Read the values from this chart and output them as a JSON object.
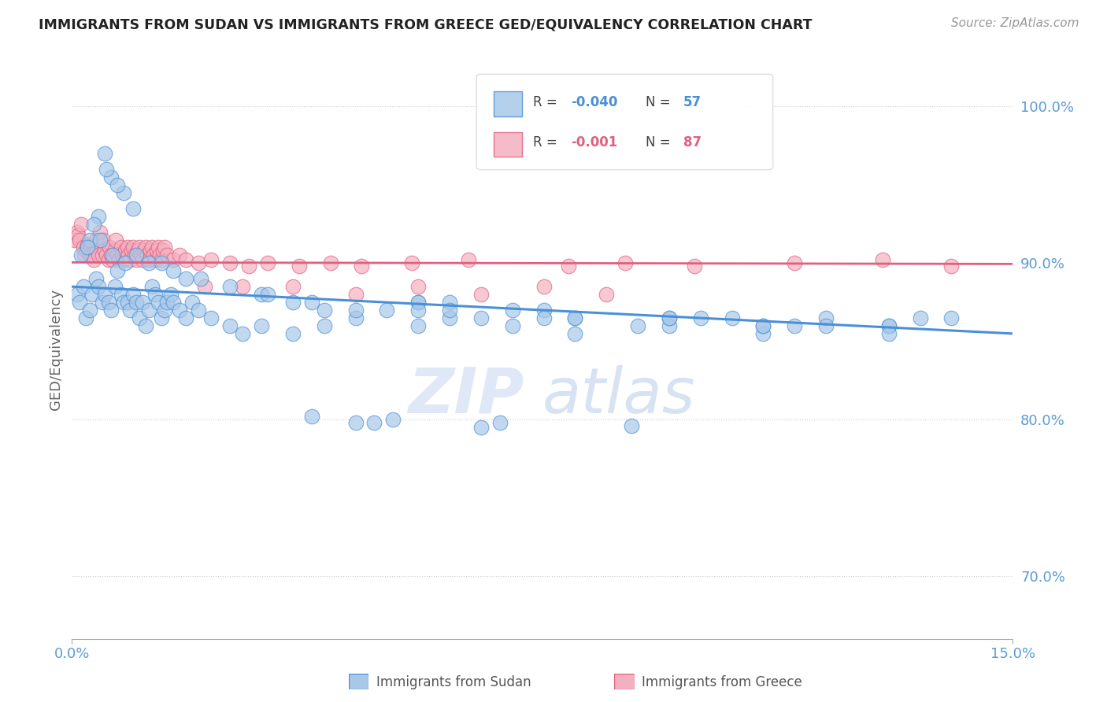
{
  "title": "IMMIGRANTS FROM SUDAN VS IMMIGRANTS FROM GREECE GED/EQUIVALENCY CORRELATION CHART",
  "source": "Source: ZipAtlas.com",
  "ylabel": "GED/Equivalency",
  "yticks": [
    70.0,
    80.0,
    90.0,
    100.0
  ],
  "xlim": [
    0.0,
    15.0
  ],
  "ylim": [
    66.0,
    103.0
  ],
  "color_blue": "#A8C8E8",
  "color_pink": "#F4B0C0",
  "color_blue_line": "#4A90D9",
  "color_pink_line": "#E06080",
  "color_axis": "#5B9BD5",
  "watermark_zip": "ZIP",
  "watermark_atlas": "atlas",
  "blue_x": [
    0.08,
    0.12,
    0.18,
    0.22,
    0.28,
    0.32,
    0.38,
    0.42,
    0.48,
    0.52,
    0.58,
    0.62,
    0.68,
    0.72,
    0.78,
    0.82,
    0.88,
    0.92,
    0.98,
    1.02,
    1.08,
    1.12,
    1.18,
    1.22,
    1.28,
    1.32,
    1.38,
    1.42,
    1.48,
    1.52,
    1.58,
    1.62,
    1.72,
    1.82,
    1.92,
    2.02,
    2.22,
    2.52,
    2.72,
    3.02,
    3.52,
    4.02,
    4.52,
    5.52,
    6.02,
    7.02,
    8.02,
    9.52,
    11.02,
    13.02,
    4.52,
    6.52,
    5.12,
    3.82,
    8.92,
    6.82,
    4.82
  ],
  "blue_y": [
    88.0,
    87.5,
    88.5,
    86.5,
    87.0,
    88.0,
    89.0,
    88.5,
    87.5,
    88.0,
    87.5,
    87.0,
    88.5,
    89.5,
    88.0,
    87.5,
    87.5,
    87.0,
    88.0,
    87.5,
    86.5,
    87.5,
    86.0,
    87.0,
    88.5,
    88.0,
    87.5,
    86.5,
    87.0,
    87.5,
    88.0,
    87.5,
    87.0,
    86.5,
    87.5,
    87.0,
    86.5,
    86.0,
    85.5,
    86.0,
    85.5,
    86.0,
    86.5,
    86.0,
    86.5,
    86.0,
    85.5,
    86.0,
    85.5,
    86.0,
    79.8,
    79.5,
    80.0,
    80.2,
    79.6,
    79.8,
    79.8
  ],
  "blue_x_extra": [
    0.52,
    0.62,
    0.82,
    0.98,
    0.55,
    0.72,
    0.42,
    0.35,
    0.28,
    0.15,
    0.25,
    0.45,
    0.65,
    0.85,
    1.02,
    1.22,
    1.42,
    1.62,
    1.82,
    2.05,
    2.52,
    3.02,
    3.52,
    4.02,
    5.02,
    5.52,
    6.02,
    7.02,
    8.02,
    9.52,
    11.02,
    13.02,
    3.12,
    3.82,
    5.52,
    7.52,
    10.52,
    12.02,
    4.52,
    5.52,
    6.52,
    7.52,
    9.52,
    11.52,
    13.52,
    6.02,
    8.02,
    10.02,
    12.02,
    14.02,
    9.02,
    11.02,
    13.02
  ],
  "blue_y_extra": [
    97.0,
    95.5,
    94.5,
    93.5,
    96.0,
    95.0,
    93.0,
    92.5,
    91.5,
    90.5,
    91.0,
    91.5,
    90.5,
    90.0,
    90.5,
    90.0,
    90.0,
    89.5,
    89.0,
    89.0,
    88.5,
    88.0,
    87.5,
    87.0,
    87.0,
    87.5,
    87.5,
    87.0,
    86.5,
    86.5,
    86.0,
    86.0,
    88.0,
    87.5,
    87.5,
    87.0,
    86.5,
    86.5,
    87.0,
    87.0,
    86.5,
    86.5,
    86.5,
    86.0,
    86.5,
    87.0,
    86.5,
    86.5,
    86.0,
    86.5,
    86.0,
    86.0,
    85.5
  ],
  "pink_x": [
    0.05,
    0.08,
    0.1,
    0.12,
    0.15,
    0.18,
    0.2,
    0.22,
    0.25,
    0.28,
    0.3,
    0.32,
    0.35,
    0.38,
    0.4,
    0.42,
    0.45,
    0.48,
    0.5,
    0.52,
    0.55,
    0.58,
    0.6,
    0.62,
    0.65,
    0.68,
    0.7,
    0.72,
    0.75,
    0.78,
    0.8,
    0.82,
    0.85,
    0.88,
    0.9,
    0.92,
    0.95,
    0.98,
    1.0,
    1.02,
    1.05,
    1.08,
    1.1,
    1.12,
    1.15,
    1.18,
    1.2,
    1.22,
    1.25,
    1.28,
    1.3,
    1.32,
    1.35,
    1.38,
    1.4,
    1.42,
    1.45,
    1.48,
    1.52,
    1.62,
    1.72,
    1.82,
    2.02,
    2.22,
    2.52,
    2.82,
    3.12,
    3.62,
    4.12,
    4.62,
    5.42,
    6.32,
    7.92,
    8.82,
    9.92,
    11.52,
    12.92,
    14.02,
    2.12,
    2.72,
    3.52,
    4.52,
    5.52,
    6.52,
    7.52,
    8.52
  ],
  "pink_y": [
    91.5,
    92.0,
    91.8,
    91.5,
    92.5,
    91.0,
    90.5,
    90.8,
    91.2,
    90.5,
    91.0,
    90.5,
    90.2,
    91.5,
    90.8,
    90.5,
    92.0,
    90.5,
    91.5,
    90.8,
    90.5,
    90.2,
    91.0,
    90.5,
    90.2,
    90.8,
    91.5,
    90.5,
    90.2,
    91.0,
    90.5,
    90.2,
    90.8,
    91.0,
    90.5,
    90.2,
    90.8,
    91.0,
    90.5,
    90.2,
    90.8,
    91.0,
    90.5,
    90.2,
    90.8,
    91.0,
    90.5,
    90.2,
    90.8,
    91.0,
    90.5,
    90.2,
    90.8,
    91.0,
    90.5,
    90.2,
    90.8,
    91.0,
    90.5,
    90.2,
    90.5,
    90.2,
    90.0,
    90.2,
    90.0,
    89.8,
    90.0,
    89.8,
    90.0,
    89.8,
    90.0,
    90.2,
    89.8,
    90.0,
    89.8,
    90.0,
    90.2,
    89.8,
    88.5,
    88.5,
    88.5,
    88.0,
    88.5,
    88.0,
    88.5,
    88.0
  ],
  "blue_line_x": [
    0.0,
    15.0
  ],
  "blue_line_y": [
    88.5,
    85.5
  ],
  "pink_line_x": [
    0.0,
    15.0
  ],
  "pink_line_y": [
    90.05,
    89.95
  ]
}
